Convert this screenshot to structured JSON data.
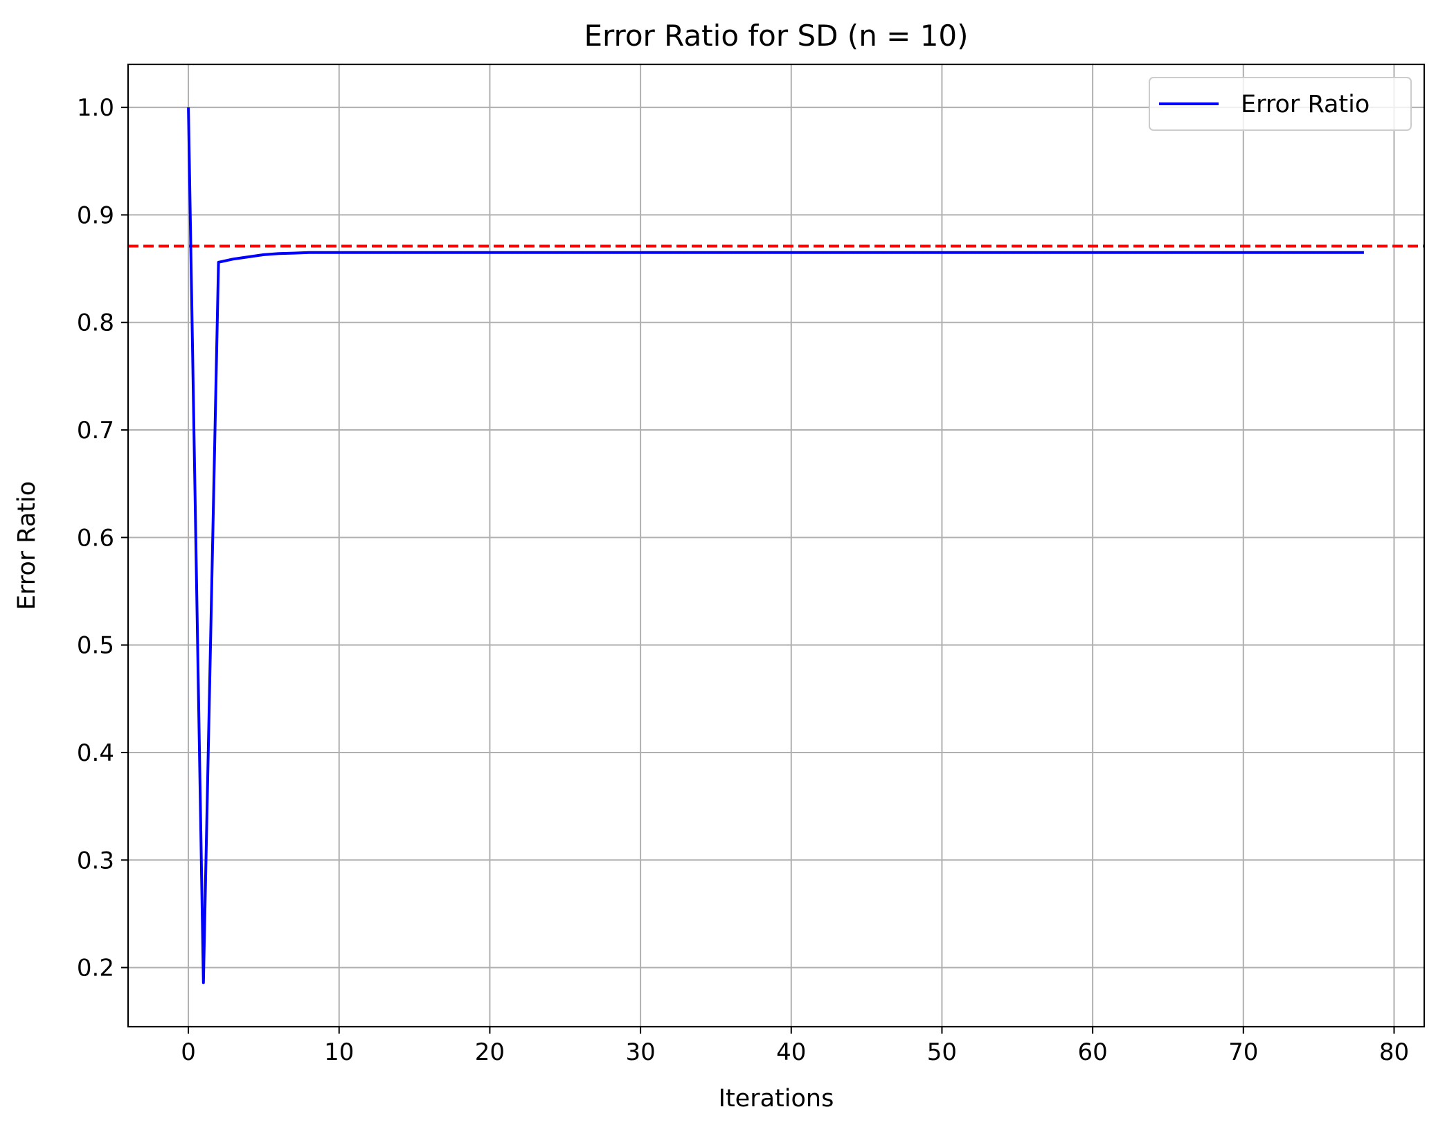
{
  "chart_data": {
    "type": "line",
    "title": "Error Ratio for SD (n = 10)",
    "xlabel": "Iterations",
    "ylabel": "Error Ratio",
    "xlim": [
      -4,
      82
    ],
    "ylim": [
      0.145,
      1.04
    ],
    "xticks": [
      0,
      10,
      20,
      30,
      40,
      50,
      60,
      70,
      80
    ],
    "yticks": [
      0.2,
      0.3,
      0.4,
      0.5,
      0.6,
      0.7,
      0.8,
      0.9,
      1.0
    ],
    "xtick_labels": [
      "0",
      "10",
      "20",
      "30",
      "40",
      "50",
      "60",
      "70",
      "80"
    ],
    "ytick_labels": [
      "0.2",
      "0.3",
      "0.4",
      "0.5",
      "0.6",
      "0.7",
      "0.8",
      "0.9",
      "1.0"
    ],
    "grid": true,
    "legend": {
      "position": "top-right"
    },
    "series": [
      {
        "name": "Error Ratio",
        "color": "#0000ff",
        "style": "solid",
        "x": [
          0,
          1,
          2,
          3,
          4,
          5,
          6,
          7,
          8,
          9,
          10,
          20,
          30,
          40,
          50,
          60,
          70,
          78
        ],
        "y": [
          1.0,
          0.186,
          0.856,
          0.859,
          0.861,
          0.863,
          0.864,
          0.8645,
          0.865,
          0.865,
          0.865,
          0.865,
          0.865,
          0.865,
          0.865,
          0.865,
          0.865,
          0.865
        ]
      }
    ],
    "reference_lines": [
      {
        "orientation": "horizontal",
        "y": 0.871,
        "color": "#ff0000",
        "style": "dashed"
      }
    ]
  }
}
